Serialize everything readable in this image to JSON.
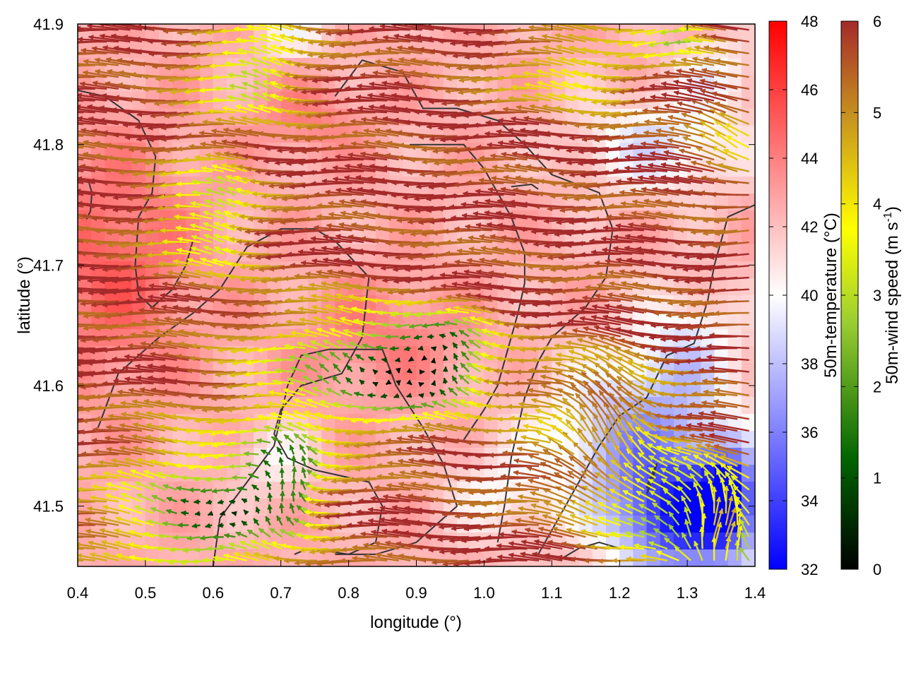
{
  "chart_data": {
    "type": "heatmap",
    "subtype": "wind-vector field over temperature heatmap with contour lines",
    "xlabel": "longitude (°)",
    "ylabel": "latitude (°)",
    "xlim": [
      0.4,
      1.4
    ],
    "ylim": [
      41.45,
      41.9
    ],
    "x_ticks": [
      "0.4",
      "0.5",
      "0.6",
      "0.7",
      "0.8",
      "0.9",
      "1.0",
      "1.1",
      "1.2",
      "1.3",
      "1.4"
    ],
    "y_ticks": [
      "41.5",
      "41.6",
      "41.7",
      "41.8",
      "41.9"
    ],
    "grid": false,
    "temperature_colorbar": {
      "label": "50m-temperature (°C)",
      "range": [
        32,
        48
      ],
      "ticks": [
        "32",
        "34",
        "36",
        "38",
        "40",
        "42",
        "44",
        "46",
        "48"
      ],
      "colors": [
        "#0000ff",
        "#ffffff",
        "#ff0000"
      ]
    },
    "wind_colorbar": {
      "label_main": "50m-wind speed (m s",
      "label_sup": "-1",
      "label_end": ")",
      "range": [
        0,
        6
      ],
      "ticks": [
        "0",
        "1",
        "2",
        "3",
        "4",
        "5",
        "6"
      ],
      "colors": [
        "#000000",
        "#006400",
        "#9acd32",
        "#ffff00",
        "#c8961e",
        "#a52a2a"
      ]
    },
    "temperature_field": {
      "base_temperature": 42.5,
      "anomalies": [
        {
          "lon": 1.3,
          "lat": 41.49,
          "dT": -9.5,
          "radius_lon": 0.11,
          "radius_lat": 0.05
        },
        {
          "lon": 1.36,
          "lat": 41.51,
          "dT": -6.0,
          "radius_lon": 0.04,
          "radius_lat": 0.04
        },
        {
          "lon": 1.22,
          "lat": 41.56,
          "dT": -5.0,
          "radius_lon": 0.13,
          "radius_lat": 0.06
        },
        {
          "lon": 1.3,
          "lat": 41.63,
          "dT": -3.0,
          "radius_lon": 0.08,
          "radius_lat": 0.05
        },
        {
          "lon": 1.02,
          "lat": 41.51,
          "dT": -2.0,
          "radius_lon": 0.08,
          "radius_lat": 0.04
        },
        {
          "lon": 1.26,
          "lat": 41.8,
          "dT": -3.5,
          "radius_lon": 0.12,
          "radius_lat": 0.04
        },
        {
          "lon": 1.34,
          "lat": 41.86,
          "dT": -2.5,
          "radius_lon": 0.06,
          "radius_lat": 0.03
        },
        {
          "lon": 0.72,
          "lat": 41.89,
          "dT": -2.5,
          "radius_lon": 0.05,
          "radius_lat": 0.02
        },
        {
          "lon": 0.69,
          "lat": 41.54,
          "dT": -2.0,
          "radius_lon": 0.06,
          "radius_lat": 0.03
        },
        {
          "lon": 0.45,
          "lat": 41.7,
          "dT": 2.5,
          "radius_lon": 0.12,
          "radius_lat": 0.1
        },
        {
          "lon": 0.85,
          "lat": 41.64,
          "dT": 1.5,
          "radius_lon": 0.12,
          "radius_lat": 0.05
        },
        {
          "lon": 0.74,
          "lat": 41.82,
          "dT": 1.5,
          "radius_lon": 0.08,
          "radius_lat": 0.03
        }
      ]
    },
    "contours": [
      [
        [
          0.4,
          41.845
        ],
        [
          0.44,
          41.84
        ],
        [
          0.49,
          41.82
        ],
        [
          0.515,
          41.79
        ],
        [
          0.51,
          41.76
        ],
        [
          0.49,
          41.74
        ],
        [
          0.485,
          41.7
        ],
        [
          0.49,
          41.675
        ],
        [
          0.51,
          41.665
        ],
        [
          0.54,
          41.68
        ],
        [
          0.56,
          41.7
        ],
        [
          0.57,
          41.72
        ]
      ],
      [
        [
          0.416,
          41.77
        ],
        [
          0.421,
          41.76
        ],
        [
          0.419,
          41.745
        ],
        [
          0.413,
          41.738
        ]
      ],
      [
        [
          0.43,
          41.565
        ],
        [
          0.46,
          41.61
        ],
        [
          0.52,
          41.64
        ],
        [
          0.57,
          41.66
        ],
        [
          0.61,
          41.68
        ],
        [
          0.65,
          41.715
        ],
        [
          0.7,
          41.73
        ],
        [
          0.75,
          41.73
        ],
        [
          0.78,
          41.72
        ],
        [
          0.83,
          41.69
        ],
        [
          0.82,
          41.64
        ],
        [
          0.79,
          41.61
        ],
        [
          0.73,
          41.6
        ],
        [
          0.7,
          41.58
        ],
        [
          0.69,
          41.56
        ],
        [
          0.71,
          41.54
        ],
        [
          0.75,
          41.53
        ],
        [
          0.79,
          41.525
        ],
        [
          0.83,
          41.52
        ],
        [
          0.85,
          41.5
        ],
        [
          0.84,
          41.47
        ],
        [
          0.8,
          41.46
        ],
        [
          0.74,
          41.465
        ],
        [
          0.72,
          41.46
        ]
      ],
      [
        [
          0.6,
          41.45
        ],
        [
          0.61,
          41.49
        ],
        [
          0.65,
          41.52
        ],
        [
          0.69,
          41.55
        ],
        [
          0.71,
          41.6
        ],
        [
          0.73,
          41.625
        ],
        [
          0.77,
          41.63
        ],
        [
          0.81,
          41.63
        ],
        [
          0.85,
          41.63
        ],
        [
          0.87,
          41.6
        ],
        [
          0.91,
          41.565
        ],
        [
          0.94,
          41.535
        ],
        [
          0.96,
          41.5
        ],
        [
          0.9,
          41.47
        ],
        [
          0.84,
          41.46
        ],
        [
          0.78,
          41.46
        ]
      ],
      [
        [
          0.78,
          41.84
        ],
        [
          0.82,
          41.87
        ],
        [
          0.88,
          41.86
        ],
        [
          0.91,
          41.83
        ],
        [
          0.96,
          41.83
        ],
        [
          1.02,
          41.82
        ],
        [
          1.06,
          41.8
        ],
        [
          1.1,
          41.775
        ],
        [
          1.17,
          41.76
        ],
        [
          1.19,
          41.73
        ],
        [
          1.18,
          41.69
        ],
        [
          1.15,
          41.665
        ],
        [
          1.1,
          41.64
        ],
        [
          1.08,
          41.62
        ],
        [
          1.06,
          41.59
        ],
        [
          1.04,
          41.54
        ],
        [
          1.03,
          41.5
        ],
        [
          1.02,
          41.47
        ]
      ],
      [
        [
          0.89,
          41.8
        ],
        [
          0.92,
          41.8
        ],
        [
          0.97,
          41.8
        ],
        [
          1.0,
          41.78
        ],
        [
          1.02,
          41.76
        ],
        [
          1.04,
          41.74
        ],
        [
          1.06,
          41.71
        ],
        [
          1.06,
          41.685
        ],
        [
          1.05,
          41.66
        ],
        [
          1.04,
          41.64
        ],
        [
          1.03,
          41.62
        ],
        [
          1.02,
          41.6
        ],
        [
          1.0,
          41.58
        ],
        [
          0.97,
          41.555
        ]
      ],
      [
        [
          1.04,
          41.765
        ],
        [
          1.07,
          41.767
        ],
        [
          1.08,
          41.763
        ]
      ],
      [
        [
          1.4,
          41.75
        ],
        [
          1.36,
          41.74
        ],
        [
          1.34,
          41.7
        ],
        [
          1.33,
          41.67
        ],
        [
          1.31,
          41.635
        ],
        [
          1.27,
          41.625
        ],
        [
          1.24,
          41.59
        ],
        [
          1.2,
          41.575
        ],
        [
          1.17,
          41.55
        ],
        [
          1.14,
          41.52
        ],
        [
          1.11,
          41.49
        ],
        [
          1.08,
          41.46
        ]
      ],
      [
        [
          1.24,
          41.51
        ],
        [
          1.25,
          41.525
        ],
        [
          1.255,
          41.535
        ],
        [
          1.24,
          41.515
        ]
      ],
      [
        [
          1.11,
          41.455
        ],
        [
          1.14,
          41.465
        ],
        [
          1.17,
          41.47
        ],
        [
          1.2,
          41.465
        ]
      ]
    ],
    "wind_field": {
      "base_u": -5.8,
      "base_v": 0.15,
      "features": [
        {
          "lon": 0.82,
          "lat": 41.61,
          "du": 4.2,
          "dv": 0.3,
          "radius_lon": 0.14,
          "radius_lat": 0.05
        },
        {
          "lon": 0.95,
          "lat": 41.62,
          "du": 4.5,
          "dv": 0.4,
          "radius_lon": 0.09,
          "radius_lat": 0.04
        },
        {
          "lon": 0.6,
          "lat": 41.49,
          "du": 4.6,
          "dv": 0.4,
          "radius_lon": 0.13,
          "radius_lat": 0.06
        },
        {
          "lon": 0.72,
          "lat": 41.52,
          "du": 4.8,
          "dv": 0.6,
          "radius_lon": 0.06,
          "radius_lat": 0.04
        },
        {
          "lon": 0.62,
          "lat": 41.74,
          "du": 3.4,
          "dv": 0.2,
          "radius_lon": 0.07,
          "radius_lat": 0.05
        },
        {
          "lon": 0.68,
          "lat": 41.86,
          "du": 3.6,
          "dv": 0.3,
          "radius_lon": 0.08,
          "radius_lat": 0.04
        },
        {
          "lon": 1.3,
          "lat": 41.49,
          "du": 3.5,
          "dv": 1.5,
          "radius_lon": 0.1,
          "radius_lat": 0.04
        },
        {
          "lon": 1.36,
          "lat": 41.47,
          "du": 5.0,
          "dv": 2.5,
          "radius_lon": 0.05,
          "radius_lat": 0.05
        },
        {
          "lon": 1.2,
          "lat": 41.56,
          "du": 3.0,
          "dv": 3.5,
          "radius_lon": 0.1,
          "radius_lat": 0.06
        },
        {
          "lon": 1.16,
          "lat": 41.86,
          "du": 2.5,
          "dv": 0.2,
          "radius_lon": 0.1,
          "radius_lat": 0.03
        },
        {
          "lon": 1.38,
          "lat": 41.8,
          "du": 2.0,
          "dv": 2.2,
          "radius_lon": 0.04,
          "radius_lat": 0.04
        },
        {
          "lon": 1.3,
          "lat": 41.89,
          "du": 3.0,
          "dv": 0.0,
          "radius_lon": 0.05,
          "radius_lat": 0.02
        }
      ]
    }
  }
}
